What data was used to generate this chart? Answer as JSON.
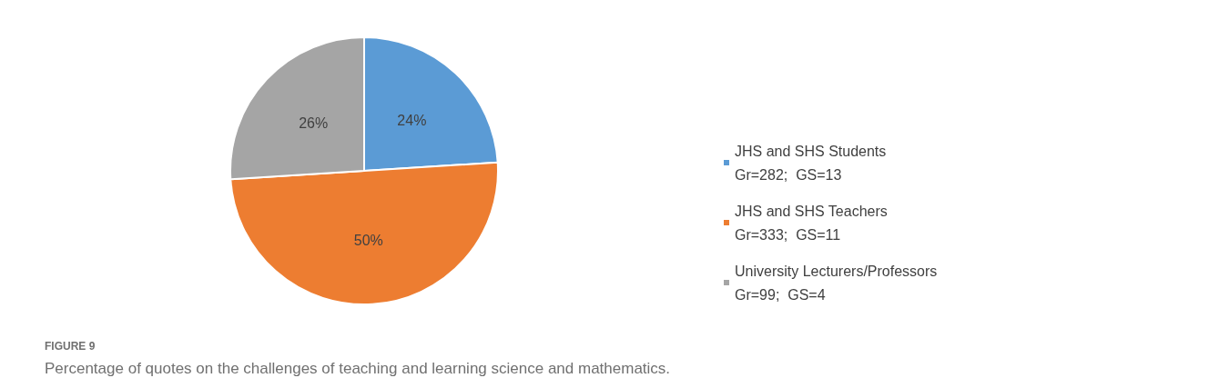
{
  "chart_data": {
    "type": "pie",
    "title": "FIGURE 9",
    "subtitle": "Percentage of quotes on the challenges of teaching and learning science and mathematics.",
    "categories": [
      "JHS and SHS Students\nGr=282;  GS=13",
      "JHS and SHS Teachers\nGr=333;  GS=11",
      "University Lecturers/Professors\nGr=99;  GS=4"
    ],
    "values": [
      24,
      50,
      26
    ],
    "colors": [
      "#5b9bd5",
      "#ed7d31",
      "#a5a5a5"
    ],
    "value_labels": [
      "24%",
      "50%",
      "26%"
    ],
    "legend": "right"
  }
}
